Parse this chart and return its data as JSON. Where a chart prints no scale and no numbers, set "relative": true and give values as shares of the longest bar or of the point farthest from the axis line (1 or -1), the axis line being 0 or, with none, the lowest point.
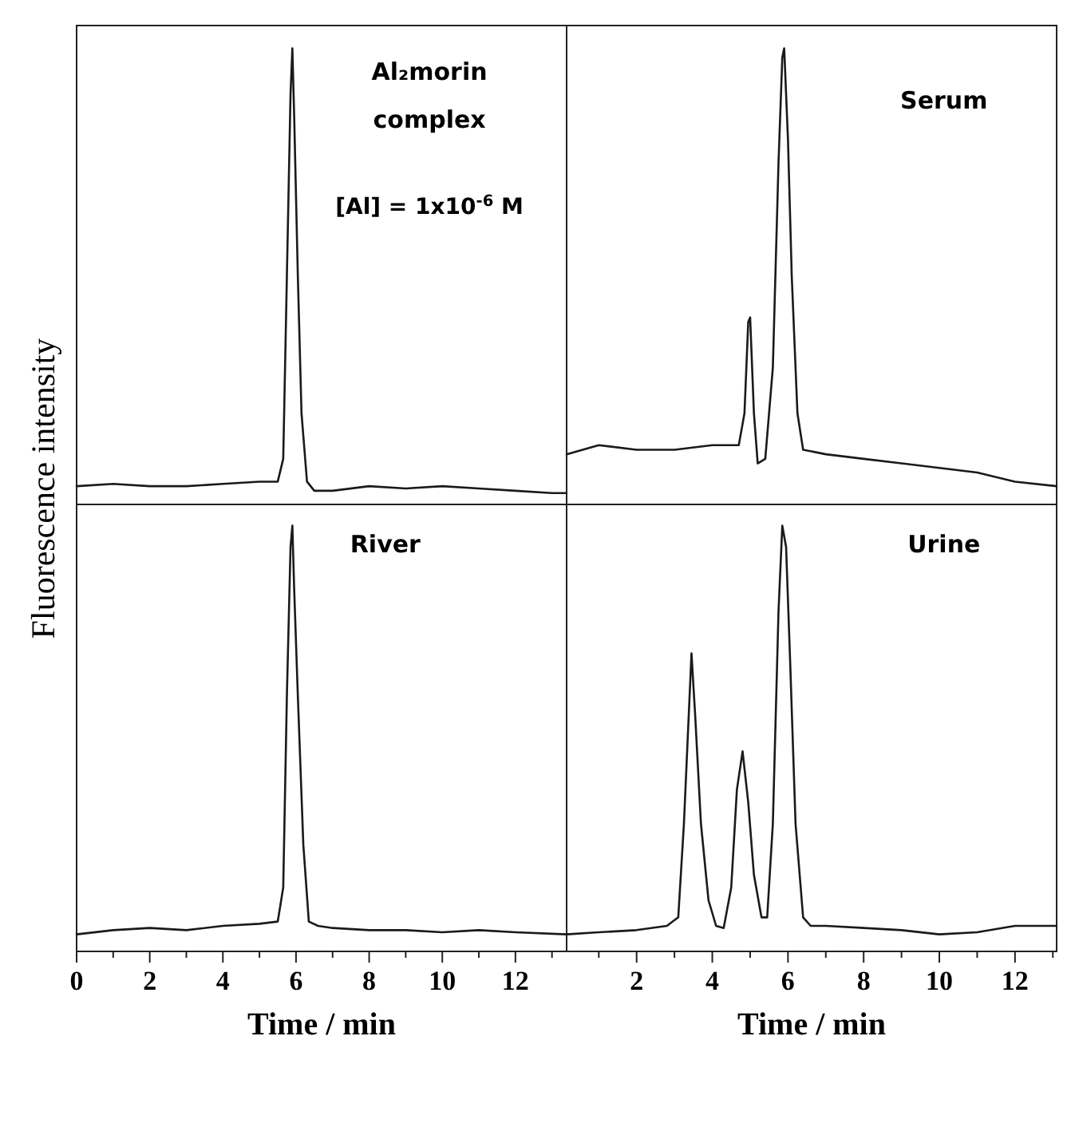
{
  "chart_data": [
    {
      "type": "line",
      "title": "Al₂morin complex",
      "annotations": [
        "[Al] = 1x10$^{-6}$ M"
      ],
      "ylabel": "Fluorescence intensity",
      "relative": true,
      "xlim": [
        0,
        13.4
      ],
      "tick_labels": false,
      "series": [
        {
          "color": "#1a1a1a",
          "x": [
            0,
            1,
            2,
            3,
            4,
            5,
            5.5,
            5.65,
            5.75,
            5.85,
            5.9,
            5.95,
            6.05,
            6.15,
            6.3,
            6.5,
            7,
            8,
            9,
            10,
            11,
            12,
            13,
            13.4
          ],
          "values": [
            0.04,
            0.045,
            0.04,
            0.04,
            0.045,
            0.05,
            0.05,
            0.1,
            0.5,
            0.9,
            1,
            0.85,
            0.5,
            0.2,
            0.05,
            0.03,
            0.03,
            0.04,
            0.035,
            0.04,
            0.035,
            0.03,
            0.025,
            0.025
          ]
        }
      ]
    },
    {
      "type": "line",
      "title": "Serum",
      "relative": true,
      "xlim": [
        0.15,
        13.1
      ],
      "tick_labels": false,
      "series": [
        {
          "color": "#1a1a1a",
          "x": [
            0.15,
            1,
            2,
            3,
            4,
            4.7,
            4.85,
            4.95,
            5,
            5.1,
            5.2,
            5.4,
            5.6,
            5.75,
            5.85,
            5.9,
            6,
            6.1,
            6.25,
            6.4,
            7,
            8,
            9,
            10,
            11,
            12,
            13.1
          ],
          "values": [
            0.11,
            0.13,
            0.12,
            0.12,
            0.13,
            0.13,
            0.2,
            0.4,
            0.41,
            0.2,
            0.09,
            0.1,
            0.3,
            0.75,
            0.98,
            1,
            0.8,
            0.5,
            0.2,
            0.12,
            0.11,
            0.1,
            0.09,
            0.08,
            0.07,
            0.05,
            0.04
          ]
        }
      ]
    },
    {
      "type": "line",
      "title": "River",
      "xlabel": "Time / min",
      "relative": true,
      "xlim": [
        0,
        13.4
      ],
      "tick_labels": "x",
      "xticks": [
        0,
        {
          "value": 1,
          "label": null
        },
        2,
        {
          "value": 3,
          "label": null
        },
        4,
        {
          "value": 5,
          "label": null
        },
        6,
        {
          "value": 7,
          "label": null
        },
        8,
        {
          "value": 9,
          "label": null
        },
        10,
        {
          "value": 11,
          "label": null
        },
        12,
        {
          "value": 13,
          "label": null
        }
      ],
      "series": [
        {
          "color": "#1a1a1a",
          "x": [
            0,
            1,
            2,
            3,
            4,
            5,
            5.5,
            5.65,
            5.75,
            5.85,
            5.9,
            5.95,
            6.05,
            6.2,
            6.35,
            6.6,
            7,
            8,
            9,
            10,
            11,
            12,
            13.4
          ],
          "values": [
            0.04,
            0.05,
            0.055,
            0.05,
            0.06,
            0.065,
            0.07,
            0.15,
            0.6,
            0.95,
            1,
            0.85,
            0.6,
            0.25,
            0.07,
            0.06,
            0.055,
            0.05,
            0.05,
            0.045,
            0.05,
            0.045,
            0.04
          ]
        }
      ]
    },
    {
      "type": "line",
      "title": "Urine",
      "xlabel": "Time / min",
      "relative": true,
      "xlim": [
        0.15,
        13.1
      ],
      "tick_labels": "x",
      "xticks": [
        {
          "value": 1,
          "label": null
        },
        2,
        {
          "value": 3,
          "label": null
        },
        4,
        {
          "value": 5,
          "label": null
        },
        6,
        {
          "value": 7,
          "label": null
        },
        8,
        {
          "value": 9,
          "label": null
        },
        10,
        {
          "value": 11,
          "label": null
        },
        12,
        {
          "value": 13,
          "label": null
        }
      ],
      "series": [
        {
          "color": "#1a1a1a",
          "x": [
            0.15,
            1,
            2,
            2.8,
            3.1,
            3.25,
            3.4,
            3.45,
            3.55,
            3.7,
            3.9,
            4.1,
            4.3,
            4.5,
            4.65,
            4.8,
            4.95,
            5.1,
            5.3,
            5.45,
            5.6,
            5.75,
            5.85,
            5.95,
            6.05,
            6.2,
            6.4,
            6.6,
            7,
            8,
            9,
            10,
            11,
            12,
            13.1
          ],
          "values": [
            0.04,
            0.045,
            0.05,
            0.06,
            0.08,
            0.3,
            0.6,
            0.7,
            0.55,
            0.3,
            0.12,
            0.06,
            0.055,
            0.15,
            0.38,
            0.47,
            0.35,
            0.18,
            0.08,
            0.08,
            0.3,
            0.8,
            1,
            0.95,
            0.7,
            0.3,
            0.08,
            0.06,
            0.06,
            0.055,
            0.05,
            0.04,
            0.045,
            0.06,
            0.06
          ]
        }
      ]
    }
  ]
}
